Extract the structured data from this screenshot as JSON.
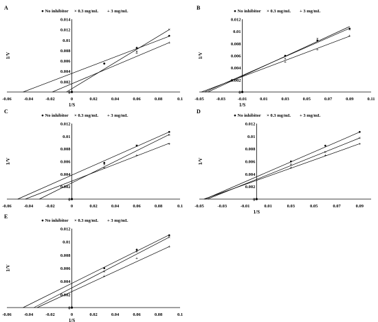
{
  "figure": {
    "panels": [
      "A",
      "B",
      "C",
      "D",
      "E"
    ]
  },
  "chart_data": [
    {
      "panel": "A",
      "type": "scatter",
      "title": "",
      "xlabel": "1/S",
      "ylabel": "1/V",
      "xlim": [
        -0.06,
        0.1
      ],
      "ylim": [
        0,
        0.014
      ],
      "xticks": [
        "-0.06",
        "-0.04",
        "-0.02",
        "0",
        "0.02",
        "0.04",
        "0.06",
        "0.08",
        "0.1"
      ],
      "yticks": [
        "0",
        "0.002",
        "0.004",
        "0.006",
        "0.008",
        "0.01",
        "0.012",
        "0.014"
      ],
      "xtick_values": [
        -0.06,
        -0.04,
        -0.02,
        0,
        0.02,
        0.04,
        0.06,
        0.08,
        0.1
      ],
      "ytick_values": [
        0,
        0.002,
        0.004,
        0.006,
        0.008,
        0.01,
        0.012,
        0.014
      ],
      "legend_position": "top",
      "series": [
        {
          "name": "No inhibitor",
          "x": [
            0.03,
            0.06,
            0.09
          ],
          "y": [
            0.0055,
            0.0085,
            0.0108
          ],
          "line": {
            "x0": -0.045,
            "slope": 0.0794
          }
        },
        {
          "name": "0.3 mg/mL",
          "x": [
            0.03,
            0.06,
            0.09
          ],
          "y": [
            0.0055,
            0.0078,
            0.012
          ],
          "line": {
            "x0": -0.005,
            "slope": 0.1263
          }
        },
        {
          "name": "3 mg/mL",
          "x": [
            0.03,
            0.06,
            0.09
          ],
          "y": [
            0.0055,
            0.0075,
            0.0095
          ],
          "line": {
            "x0": -0.018,
            "slope": 0.088
          }
        }
      ]
    },
    {
      "panel": "B",
      "type": "scatter",
      "title": "",
      "xlabel": "1/S",
      "ylabel": "1/V",
      "xlim": [
        -0.05,
        0.11
      ],
      "ylim": [
        0,
        0.012
      ],
      "xticks": [
        "-0.05",
        "-0.03",
        "-0.01",
        "0.01",
        "0.03",
        "0.05",
        "0.07",
        "0.09",
        "0.11"
      ],
      "yticks": [
        "0",
        "0.002",
        "0.004",
        "0.006",
        "0.008",
        "0.01",
        "0.012"
      ],
      "xtick_values": [
        -0.05,
        -0.03,
        -0.01,
        0.01,
        0.03,
        0.05,
        0.07,
        0.09,
        0.11
      ],
      "ytick_values": [
        0,
        0.002,
        0.004,
        0.006,
        0.008,
        0.01,
        0.012
      ],
      "yaxis_at": -0.01,
      "legend_position": "top",
      "series": [
        {
          "name": "No inhibitor",
          "x": [
            0.03,
            0.06,
            0.09
          ],
          "y": [
            0.006,
            0.0085,
            0.0105
          ],
          "line": {
            "x0": -0.045,
            "slope": 0.0778
          }
        },
        {
          "name": "0.3 mg/mL",
          "x": [
            0.03,
            0.06,
            0.09
          ],
          "y": [
            0.0055,
            0.0088,
            0.0103
          ],
          "line": {
            "x0": -0.042,
            "slope": 0.0818
          }
        },
        {
          "name": "3 mg/mL",
          "x": [
            0.03,
            0.06,
            0.09
          ],
          "y": [
            0.005,
            0.007,
            0.0093
          ],
          "line": {
            "x0": -0.048,
            "slope": 0.0667
          }
        }
      ]
    },
    {
      "panel": "C",
      "type": "scatter",
      "title": "",
      "xlabel": "",
      "ylabel": "1/V",
      "xlim": [
        -0.06,
        0.1
      ],
      "ylim": [
        0,
        0.012
      ],
      "xticks": [
        "-0.06",
        "-0.04",
        "-0.02",
        "0",
        "0.02",
        "0.04",
        "0.06",
        "0.08",
        "0.1"
      ],
      "yticks": [
        "0",
        "0.002",
        "0.004",
        "0.006",
        "0.008",
        "0.01",
        "0.012"
      ],
      "xtick_values": [
        -0.06,
        -0.04,
        -0.02,
        0,
        0.02,
        0.04,
        0.06,
        0.08,
        0.1
      ],
      "ytick_values": [
        0,
        0.002,
        0.004,
        0.006,
        0.008,
        0.01,
        0.012
      ],
      "legend_position": "top",
      "series": [
        {
          "name": "No inhibitor",
          "x": [
            0.03,
            0.06,
            0.09
          ],
          "y": [
            0.0058,
            0.0085,
            0.0107
          ],
          "line": {
            "x0": -0.05,
            "slope": 0.0762
          }
        },
        {
          "name": "0.3 mg/mL",
          "x": [
            0.03,
            0.06,
            0.09
          ],
          "y": [
            0.0055,
            0.0085,
            0.0102
          ],
          "line": {
            "x0": -0.03,
            "slope": 0.0855
          }
        },
        {
          "name": "3 mg/mL",
          "x": [
            0.03,
            0.06,
            0.09
          ],
          "y": [
            0.005,
            0.007,
            0.0088
          ],
          "line": {
            "x0": -0.043,
            "slope": 0.0667
          }
        }
      ]
    },
    {
      "panel": "D",
      "type": "scatter",
      "title": "",
      "xlabel": "1/S",
      "ylabel": "1/V",
      "xlim": [
        -0.05,
        0.1
      ],
      "ylim": [
        0,
        0.012
      ],
      "xticks": [
        "-0.05",
        "-0.03",
        "-0.01",
        "0.01",
        "0.03",
        "0.05",
        "0.07",
        "0.09"
      ],
      "yticks": [
        "0",
        "0.002",
        "0.004",
        "0.006",
        "0.008",
        "0.01",
        "0.012"
      ],
      "xtick_values": [
        -0.05,
        -0.03,
        -0.01,
        0.01,
        0.03,
        0.05,
        0.07,
        0.09
      ],
      "ytick_values": [
        0,
        0.002,
        0.004,
        0.006,
        0.008,
        0.01,
        0.012
      ],
      "yaxis_at": 0,
      "legend_position": "top",
      "series": [
        {
          "name": "No inhibitor",
          "x": [
            0.03,
            0.06,
            0.09
          ],
          "y": [
            0.006,
            0.0085,
            0.0107
          ],
          "line": {
            "x0": -0.045,
            "slope": 0.0789
          }
        },
        {
          "name": "0.3 mg/mL",
          "x": [
            0.03,
            0.06,
            0.09
          ],
          "y": [
            0.0055,
            0.0075,
            0.0097
          ],
          "line": {
            "x0": -0.043,
            "slope": 0.073
          }
        },
        {
          "name": "3 mg/mL",
          "x": [
            0.03,
            0.06,
            0.09
          ],
          "y": [
            0.005,
            0.007,
            0.0088
          ],
          "line": {
            "x0": -0.046,
            "slope": 0.0647
          }
        }
      ]
    },
    {
      "panel": "E",
      "type": "scatter",
      "title": "",
      "xlabel": "1/S",
      "ylabel": "1/V",
      "xlim": [
        -0.06,
        0.1
      ],
      "ylim": [
        0,
        0.012
      ],
      "xticks": [
        "-0.06",
        "-0.04",
        "-0.02",
        "0",
        "0.02",
        "0.04",
        "0.06",
        "0.08",
        "0.1"
      ],
      "yticks": [
        "0",
        "0.002",
        "0.004",
        "0.006",
        "0.008",
        "0.01",
        "0.012"
      ],
      "xtick_values": [
        -0.06,
        -0.04,
        -0.02,
        0,
        0.02,
        0.04,
        0.06,
        0.08,
        0.1
      ],
      "ytick_values": [
        0,
        0.002,
        0.004,
        0.006,
        0.008,
        0.01,
        0.012
      ],
      "legend_position": "top",
      "series": [
        {
          "name": "No inhibitor",
          "x": [
            0.03,
            0.06,
            0.09
          ],
          "y": [
            0.006,
            0.0088,
            0.011
          ],
          "line": {
            "x0": -0.045,
            "slope": 0.0818
          }
        },
        {
          "name": "0.3 mg/mL",
          "x": [
            0.03,
            0.06,
            0.09
          ],
          "y": [
            0.0055,
            0.0085,
            0.0107
          ],
          "line": {
            "x0": -0.035,
            "slope": 0.0856
          }
        },
        {
          "name": "3 mg/mL",
          "x": [
            0.03,
            0.06,
            0.09
          ],
          "y": [
            0.0048,
            0.0075,
            0.0093
          ],
          "line": {
            "x0": -0.032,
            "slope": 0.076
          }
        }
      ]
    }
  ]
}
